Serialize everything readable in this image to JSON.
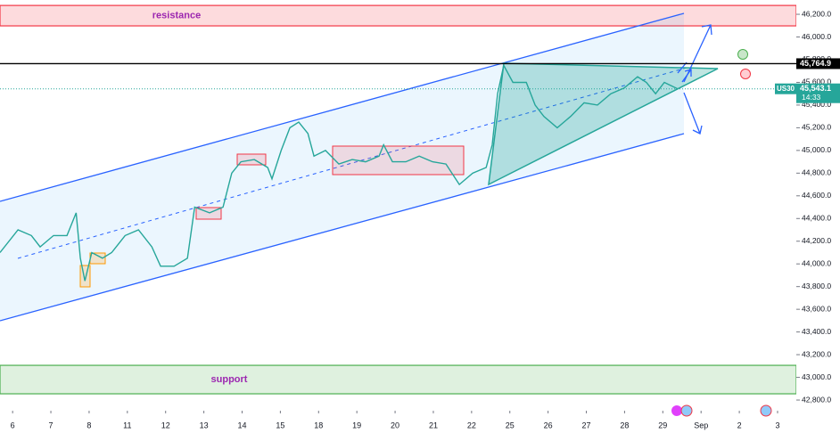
{
  "chart_data": {
    "type": "line",
    "symbol": "US30",
    "countdown": "14:33",
    "color": "#26a69a",
    "x": [
      -0.33,
      0.14,
      0.49,
      0.72,
      1.07,
      1.42,
      1.66,
      1.77,
      1.89,
      2.07,
      2.35,
      2.59,
      2.94,
      3.29,
      3.64,
      3.87,
      4.22,
      4.57,
      4.76,
      5.15,
      5.5,
      5.73,
      5.97,
      6.32,
      6.67,
      6.78,
      7.02,
      7.25,
      7.48,
      7.72,
      7.88,
      8.18,
      8.53,
      8.88,
      9.23,
      9.58,
      9.7,
      9.93,
      10.28,
      10.63,
      10.98,
      11.33,
      11.68,
      12.03,
      12.38,
      12.54,
      12.68,
      12.84,
      13.08,
      13.43,
      13.66,
      13.89,
      14.24,
      14.59,
      14.94,
      15.29,
      15.64,
      15.99,
      16.34,
      16.57,
      16.81,
      17.04,
      17.39
    ],
    "values": [
      44100,
      44300,
      44250,
      44150,
      44250,
      44250,
      44450,
      44050,
      43850,
      44100,
      44050,
      44100,
      44250,
      44300,
      44150,
      43980,
      43980,
      44050,
      44500,
      44450,
      44500,
      44800,
      44900,
      44920,
      44850,
      44750,
      45000,
      45200,
      45250,
      45150,
      44950,
      45000,
      44880,
      44920,
      44900,
      44950,
      45050,
      44900,
      44900,
      44950,
      44900,
      44880,
      44700,
      44800,
      44850,
      45050,
      45500,
      45750,
      45600,
      45600,
      45400,
      45300,
      45200,
      45300,
      45420,
      45400,
      45500,
      45550,
      45650,
      45600,
      45500,
      45600,
      45543
    ],
    "xlim": [
      -0.33,
      20.49
    ],
    "xticks": [
      {
        "value": 0,
        "label": "6"
      },
      {
        "value": 1,
        "label": "7"
      },
      {
        "value": 2,
        "label": "8"
      },
      {
        "value": 3,
        "label": "11"
      },
      {
        "value": 4,
        "label": "12"
      },
      {
        "value": 5,
        "label": "13"
      },
      {
        "value": 6,
        "label": "14"
      },
      {
        "value": 7,
        "label": "15"
      },
      {
        "value": 8,
        "label": "18"
      },
      {
        "value": 9,
        "label": "19"
      },
      {
        "value": 10,
        "label": "20"
      },
      {
        "value": 11,
        "label": "21"
      },
      {
        "value": 12,
        "label": "22"
      },
      {
        "value": 13,
        "label": "25"
      },
      {
        "value": 14,
        "label": "26"
      },
      {
        "value": 15,
        "label": "27"
      },
      {
        "value": 16,
        "label": "28"
      },
      {
        "value": 17,
        "label": "29"
      },
      {
        "value": 18,
        "label": "Sep"
      },
      {
        "value": 19,
        "label": "2"
      },
      {
        "value": 20,
        "label": "3"
      }
    ],
    "ylim": [
      42706,
      46326
    ],
    "yticks": [
      {
        "value": 46200,
        "label": "46,200.0"
      },
      {
        "value": 46000,
        "label": "46,000.0"
      },
      {
        "value": 45800,
        "label": "45,800.0"
      },
      {
        "value": 45600,
        "label": "45,600.0"
      },
      {
        "value": 45400,
        "label": "45,400.0"
      },
      {
        "value": 45200,
        "label": "45,200.0"
      },
      {
        "value": 45000,
        "label": "45,000.0"
      },
      {
        "value": 44800,
        "label": "44,800.0"
      },
      {
        "value": 44600,
        "label": "44,600.0"
      },
      {
        "value": 44400,
        "label": "44,400.0"
      },
      {
        "value": 44200,
        "label": "44,200.0"
      },
      {
        "value": 44000,
        "label": "44,000.0"
      },
      {
        "value": 43800,
        "label": "43,800.0"
      },
      {
        "value": 43600,
        "label": "43,600.0"
      },
      {
        "value": 43400,
        "label": "43,400.0"
      },
      {
        "value": 43200,
        "label": "43,200.0"
      },
      {
        "value": 43000,
        "label": "43,000.0"
      },
      {
        "value": 42800,
        "label": "42,800.0"
      }
    ],
    "price_line": {
      "value": 45764.9,
      "label": "45,764.9"
    },
    "last_price": {
      "value": 45543.1,
      "label": "45,543.1"
    },
    "zones": [
      {
        "label": "resistance",
        "range": [
          46098,
          46278
        ],
        "color": "#f23645",
        "text_color": "#9c27b0"
      },
      {
        "label": "support",
        "range": [
          42855,
          43106
        ],
        "color": "#4caf50",
        "text_color": "#9c27b0"
      }
    ]
  }
}
